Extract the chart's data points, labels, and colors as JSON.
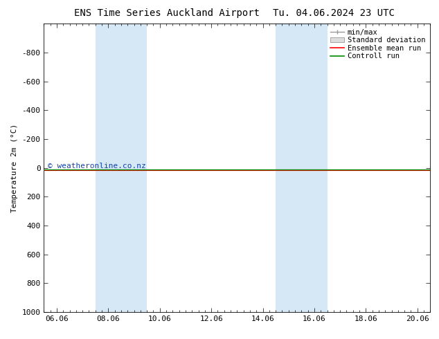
{
  "title": "ENS Time Series Auckland Airport",
  "title2": "Tu. 04.06.2024 23 UTC",
  "ylabel": "Temperature 2m (°C)",
  "ylim": [
    -1000,
    1000
  ],
  "yticks": [
    -800,
    -600,
    -400,
    -200,
    0,
    200,
    400,
    600,
    800,
    1000
  ],
  "xtick_labels": [
    "06.06",
    "08.06",
    "10.06",
    "12.06",
    "14.06",
    "16.06",
    "18.06",
    "20.06"
  ],
  "xtick_positions": [
    0,
    2,
    4,
    6,
    8,
    10,
    12,
    14
  ],
  "shaded_regions": [
    {
      "x_start": 2.0,
      "x_end": 4.0
    },
    {
      "x_start": 9.0,
      "x_end": 11.0
    }
  ],
  "shade_color": "#d6e8f5",
  "control_run_y": 13.5,
  "ensemble_mean_y": 13.5,
  "watermark": "© weatheronline.co.nz",
  "watermark_color": "#1144aa",
  "legend_labels": [
    "min/max",
    "Standard deviation",
    "Ensemble mean run",
    "Controll run"
  ],
  "legend_colors": [
    "#999999",
    "#cccccc",
    "#ff0000",
    "#008800"
  ],
  "background_color": "#ffffff",
  "plot_bg_color": "#ffffff",
  "axis_color": "#000000",
  "font_size": 8,
  "title_font_size": 10
}
